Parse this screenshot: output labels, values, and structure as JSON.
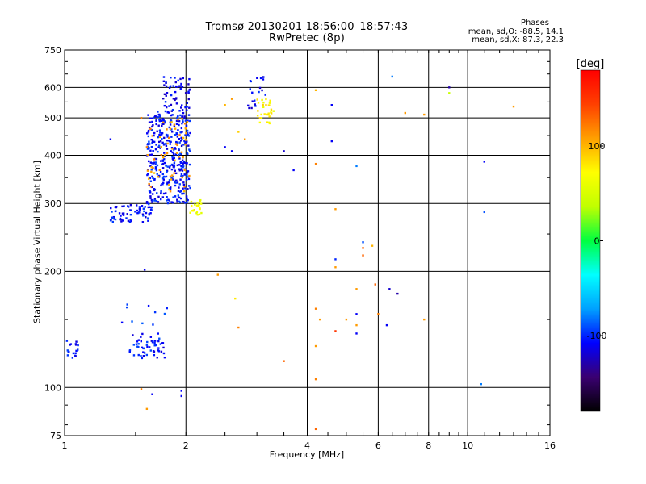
{
  "chart_data": {
    "type": "scatter",
    "title": "Tromsø 20130201 18:56:00–18:57:43",
    "subtitle": "RwPretec (8p)",
    "xlabel": "Frequency [MHz]",
    "ylabel": "Stationary phase Virtual Height [km]",
    "x_scale": "log",
    "y_scale": "log",
    "xlim": [
      1,
      16
    ],
    "ylim": [
      75,
      750
    ],
    "x_ticks": [
      1,
      2,
      4,
      6,
      8,
      10,
      16
    ],
    "y_ticks": [
      75,
      100,
      200,
      300,
      400,
      500,
      600,
      750
    ],
    "grid": true,
    "stats": {
      "header": "Phases",
      "line1": "mean, sd,O: -88.5, 14.1",
      "line2": "mean, sd,X: 87.3, 22.3"
    },
    "colorbar": {
      "label": "[deg]",
      "range": [
        -180,
        180
      ],
      "ticks": [
        100,
        0,
        -100
      ],
      "colors": [
        "#000000",
        "#3a0070",
        "#0000ff",
        "#00a0ff",
        "#00ffff",
        "#00ff40",
        "#c0ff00",
        "#ffff00",
        "#ffa000",
        "#ff4000",
        "#ff0000"
      ]
    },
    "clusters": [
      {
        "name": "",
        "f": [
          1.0,
          1.08
        ],
        "h": [
          118,
          134
        ],
        "phase": -105,
        "n": 18
      },
      {
        "name": "",
        "f": [
          1.45,
          1.78
        ],
        "h": [
          119,
          138
        ],
        "phase": -105,
        "n": 55
      },
      {
        "name": "",
        "f": [
          1.3,
          1.8
        ],
        "h": [
          145,
          165
        ],
        "phase": -100,
        "n": 10
      },
      {
        "name": "",
        "f": [
          1.3,
          1.65
        ],
        "h": [
          268,
          300
        ],
        "phase": -105,
        "n": 70
      },
      {
        "name": "",
        "f": [
          1.6,
          2.05
        ],
        "h": [
          300,
          520
        ],
        "phase": -105,
        "n": 380
      },
      {
        "name": "",
        "f": [
          1.75,
          2.05
        ],
        "h": [
          520,
          640
        ],
        "phase": -110,
        "n": 60
      },
      {
        "name": "",
        "f": [
          1.6,
          2.05
        ],
        "h": [
          320,
          500
        ],
        "phase": 110,
        "n": 60
      },
      {
        "name": "",
        "f": [
          2.05,
          2.2
        ],
        "h": [
          280,
          310
        ],
        "phase": 65,
        "n": 22
      },
      {
        "name": "",
        "f": [
          3.0,
          3.3
        ],
        "h": [
          480,
          560
        ],
        "phase": 75,
        "n": 30
      },
      {
        "name": "",
        "f": [
          2.85,
          3.2
        ],
        "h": [
          530,
          640
        ],
        "phase": -110,
        "n": 20
      }
    ],
    "points": [
      {
        "f": 1.65,
        "h": 96,
        "phase": -110
      },
      {
        "f": 1.95,
        "h": 95,
        "phase": -110
      },
      {
        "f": 1.95,
        "h": 98,
        "phase": -110
      },
      {
        "f": 1.55,
        "h": 99,
        "phase": 120
      },
      {
        "f": 1.6,
        "h": 88,
        "phase": 110
      },
      {
        "f": 1.58,
        "h": 202,
        "phase": -110
      },
      {
        "f": 1.3,
        "h": 440,
        "phase": -110
      },
      {
        "f": 1.55,
        "h": 500,
        "phase": 120
      },
      {
        "f": 1.6,
        "h": 420,
        "phase": 120
      },
      {
        "f": 2.5,
        "h": 540,
        "phase": 100
      },
      {
        "f": 2.7,
        "h": 460,
        "phase": 90
      },
      {
        "f": 2.8,
        "h": 440,
        "phase": 110
      },
      {
        "f": 2.6,
        "h": 410,
        "phase": -110
      },
      {
        "f": 2.5,
        "h": 420,
        "phase": -110
      },
      {
        "f": 2.4,
        "h": 196,
        "phase": 110
      },
      {
        "f": 2.65,
        "h": 170,
        "phase": 80
      },
      {
        "f": 2.7,
        "h": 143,
        "phase": 120
      },
      {
        "f": 2.6,
        "h": 560,
        "phase": 110
      },
      {
        "f": 3.5,
        "h": 117,
        "phase": 130
      },
      {
        "f": 3.7,
        "h": 366,
        "phase": -110
      },
      {
        "f": 3.5,
        "h": 410,
        "phase": -120
      },
      {
        "f": 4.2,
        "h": 590,
        "phase": 100
      },
      {
        "f": 4.2,
        "h": 380,
        "phase": 120
      },
      {
        "f": 4.6,
        "h": 540,
        "phase": -110
      },
      {
        "f": 4.6,
        "h": 435,
        "phase": -110
      },
      {
        "f": 4.7,
        "h": 290,
        "phase": 110
      },
      {
        "f": 4.7,
        "h": 215,
        "phase": -100
      },
      {
        "f": 4.7,
        "h": 205,
        "phase": 110
      },
      {
        "f": 4.2,
        "h": 160,
        "phase": 120
      },
      {
        "f": 4.3,
        "h": 150,
        "phase": 110
      },
      {
        "f": 4.2,
        "h": 128,
        "phase": 110
      },
      {
        "f": 4.2,
        "h": 105,
        "phase": 120
      },
      {
        "f": 4.2,
        "h": 78,
        "phase": 130
      },
      {
        "f": 4.7,
        "h": 140,
        "phase": 150
      },
      {
        "f": 5.0,
        "h": 150,
        "phase": 110
      },
      {
        "f": 5.3,
        "h": 155,
        "phase": -110
      },
      {
        "f": 5.3,
        "h": 145,
        "phase": 110
      },
      {
        "f": 5.3,
        "h": 138,
        "phase": -110
      },
      {
        "f": 5.3,
        "h": 180,
        "phase": 110
      },
      {
        "f": 5.5,
        "h": 238,
        "phase": -90
      },
      {
        "f": 5.5,
        "h": 230,
        "phase": 130
      },
      {
        "f": 5.5,
        "h": 220,
        "phase": 130
      },
      {
        "f": 5.3,
        "h": 375,
        "phase": -80
      },
      {
        "f": 5.8,
        "h": 233,
        "phase": 100
      },
      {
        "f": 5.9,
        "h": 185,
        "phase": 130
      },
      {
        "f": 6.0,
        "h": 155,
        "phase": 120
      },
      {
        "f": 6.3,
        "h": 145,
        "phase": -110
      },
      {
        "f": 6.4,
        "h": 180,
        "phase": -120
      },
      {
        "f": 6.7,
        "h": 175,
        "phase": -130
      },
      {
        "f": 6.5,
        "h": 640,
        "phase": -80
      },
      {
        "f": 7.0,
        "h": 515,
        "phase": 110
      },
      {
        "f": 7.8,
        "h": 510,
        "phase": 110
      },
      {
        "f": 7.8,
        "h": 150,
        "phase": 110
      },
      {
        "f": 9.0,
        "h": 600,
        "phase": -130
      },
      {
        "f": 9.0,
        "h": 580,
        "phase": 40
      },
      {
        "f": 11.0,
        "h": 385,
        "phase": -110
      },
      {
        "f": 11.0,
        "h": 285,
        "phase": -90
      },
      {
        "f": 10.8,
        "h": 102,
        "phase": -80
      },
      {
        "f": 13.0,
        "h": 535,
        "phase": 110
      }
    ]
  }
}
